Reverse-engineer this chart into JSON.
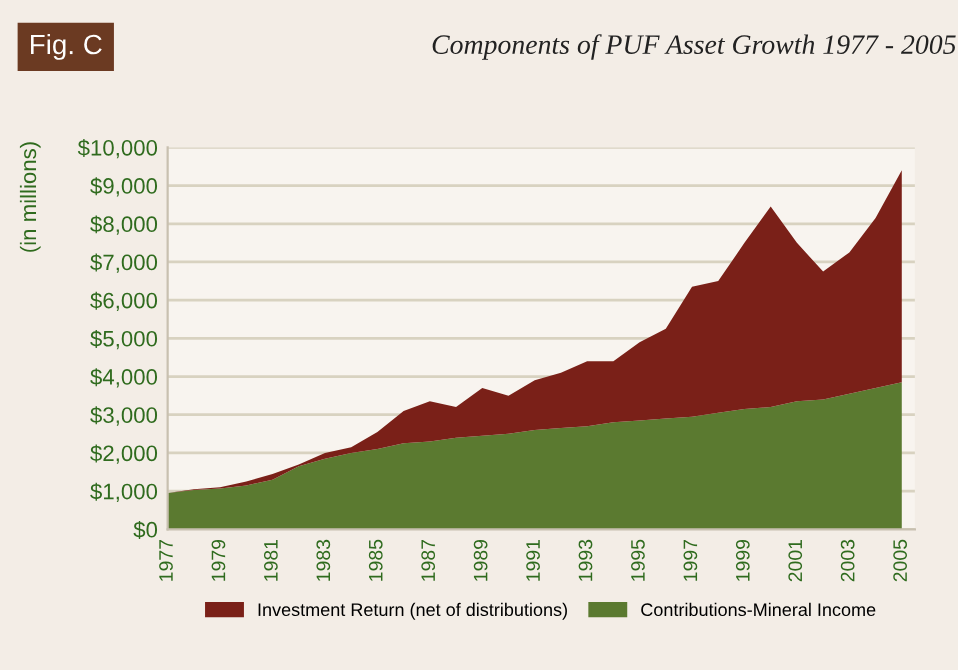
{
  "chart_data": {
    "type": "area",
    "title": "Components of PUF Asset Growth 1977 - 2005",
    "ylabel": "(in millions)",
    "annotations": [
      "Fig. C"
    ],
    "stacked": true,
    "x": [
      1977,
      1978,
      1979,
      1980,
      1981,
      1982,
      1983,
      1984,
      1985,
      1986,
      1987,
      1988,
      1989,
      1990,
      1991,
      1992,
      1993,
      1994,
      1995,
      1996,
      1997,
      1998,
      1999,
      2000,
      2001,
      2002,
      2003,
      2004,
      2005
    ],
    "series": [
      {
        "name": "Contributions-Mineral Income",
        "color": "#5b7a30",
        "values": [
          950,
          1030,
          1070,
          1150,
          1300,
          1650,
          1850,
          2000,
          2100,
          2250,
          2300,
          2400,
          2450,
          2500,
          2600,
          2650,
          2700,
          2800,
          2850,
          2900,
          2950,
          3050,
          3150,
          3200,
          3350,
          3400,
          3550,
          3700,
          3850
        ]
      },
      {
        "name": "Investment Return (net of distributions)",
        "color": "#7a2018",
        "values": [
          0,
          20,
          30,
          100,
          150,
          50,
          150,
          150,
          450,
          850,
          1050,
          800,
          1250,
          1000,
          1300,
          1450,
          1700,
          1600,
          2050,
          2350,
          3400,
          3450,
          4350,
          5250,
          4150,
          3350,
          3700,
          4450,
          5550
        ]
      }
    ],
    "xlim": [
      1977,
      2005.5
    ],
    "xticks": [
      1977,
      1979,
      1981,
      1983,
      1985,
      1987,
      1989,
      1991,
      1993,
      1995,
      1997,
      1999,
      2001,
      2003,
      2005
    ],
    "ylim": [
      0,
      10000
    ],
    "yticks": [
      {
        "value": 0,
        "label": "$0"
      },
      {
        "value": 1000,
        "label": "$1,000"
      },
      {
        "value": 2000,
        "label": "$2,000"
      },
      {
        "value": 3000,
        "label": "$3,000"
      },
      {
        "value": 4000,
        "label": "$4,000"
      },
      {
        "value": 5000,
        "label": "$5,000"
      },
      {
        "value": 6000,
        "label": "$6,000"
      },
      {
        "value": 7000,
        "label": "$7,000"
      },
      {
        "value": 8000,
        "label": "$8,000"
      },
      {
        "value": 9000,
        "label": "$9,000"
      },
      {
        "value": 10000,
        "label": "$10,000"
      }
    ],
    "grid": "y",
    "legend": "bottom"
  }
}
